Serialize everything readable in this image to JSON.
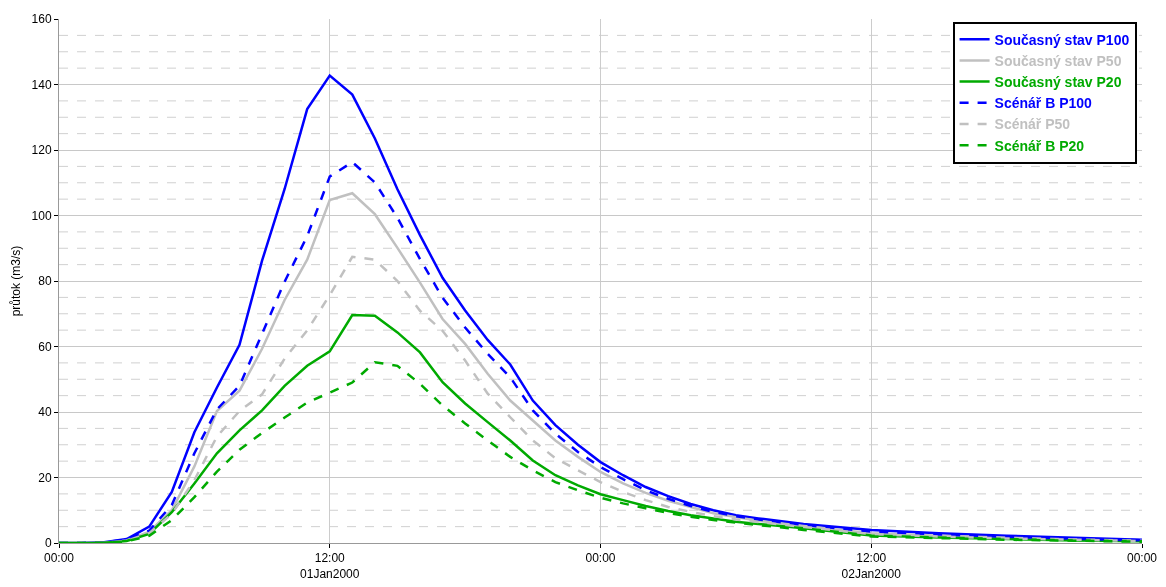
{
  "chart_data": {
    "type": "line",
    "ylabel": "průtok (m3/s)",
    "x": [
      "2000-01-01T00:00",
      "2000-01-01T01:00",
      "2000-01-01T02:00",
      "2000-01-01T03:00",
      "2000-01-01T04:00",
      "2000-01-01T05:00",
      "2000-01-01T06:00",
      "2000-01-01T07:00",
      "2000-01-01T08:00",
      "2000-01-01T09:00",
      "2000-01-01T10:00",
      "2000-01-01T11:00",
      "2000-01-01T12:00",
      "2000-01-01T13:00",
      "2000-01-01T14:00",
      "2000-01-01T15:00",
      "2000-01-01T16:00",
      "2000-01-01T17:00",
      "2000-01-01T18:00",
      "2000-01-01T19:00",
      "2000-01-01T20:00",
      "2000-01-01T21:00",
      "2000-01-01T22:00",
      "2000-01-01T23:00",
      "2000-01-02T00:00",
      "2000-01-02T01:00",
      "2000-01-02T02:00",
      "2000-01-02T03:00",
      "2000-01-02T04:00",
      "2000-01-02T05:00",
      "2000-01-02T06:00",
      "2000-01-02T07:00",
      "2000-01-02T09:00",
      "2000-01-02T12:00",
      "2000-01-02T15:00",
      "2000-01-02T18:00",
      "2000-01-02T21:00",
      "2000-01-03T00:00"
    ],
    "xlim": [
      "2000-01-01T00:00",
      "2000-01-03T00:00"
    ],
    "xticks": [
      {
        "value": "2000-01-01T00:00",
        "label": "00:00"
      },
      {
        "value": "2000-01-01T12:00",
        "label": "12:00\n01Jan2000"
      },
      {
        "value": "2000-01-02T00:00",
        "label": "00:00"
      },
      {
        "value": "2000-01-02T12:00",
        "label": "12:00\n02Jan2000"
      },
      {
        "value": "2000-01-03T00:00",
        "label": "00:00"
      }
    ],
    "ylim": [
      0,
      160
    ],
    "yticks": [
      0,
      {
        "value": 5,
        "label": null
      },
      {
        "value": 10,
        "label": null
      },
      {
        "value": 15,
        "label": null
      },
      20,
      {
        "value": 25,
        "label": null
      },
      {
        "value": 30,
        "label": null
      },
      {
        "value": 35,
        "label": null
      },
      40,
      {
        "value": 45,
        "label": null
      },
      {
        "value": 50,
        "label": null
      },
      {
        "value": 55,
        "label": null
      },
      60,
      {
        "value": 65,
        "label": null
      },
      {
        "value": 70,
        "label": null
      },
      {
        "value": 75,
        "label": null
      },
      80,
      {
        "value": 85,
        "label": null
      },
      {
        "value": 90,
        "label": null
      },
      {
        "value": 95,
        "label": null
      },
      100,
      {
        "value": 105,
        "label": null
      },
      {
        "value": 110,
        "label": null
      },
      {
        "value": 115,
        "label": null
      },
      120,
      {
        "value": 125,
        "label": null
      },
      {
        "value": 130,
        "label": null
      },
      {
        "value": 135,
        "label": null
      },
      140,
      {
        "value": 145,
        "label": null
      },
      {
        "value": 150,
        "label": null
      },
      {
        "value": 155,
        "label": null
      },
      160
    ],
    "grid": true,
    "legend": "top right",
    "marker": "none",
    "series": [
      {
        "name": "Současný stav P100",
        "color": "#0000ff",
        "line_style": "solid",
        "values": [
          0,
          0,
          0.2,
          1.2,
          5.0,
          15.6,
          33.8,
          47.5,
          60.5,
          86.2,
          108.1,
          132.5,
          142.7,
          136.9,
          123.5,
          108,
          94,
          81,
          71,
          62,
          54.5,
          43.5,
          36,
          30,
          24.7,
          20.7,
          17.1,
          14.3,
          11.9,
          10.0,
          8.5,
          7.5,
          5.8,
          4.0,
          3.0,
          2.2,
          1.6,
          1.0
        ]
      },
      {
        "name": "Současný stav P50",
        "color": "#c0c0c0",
        "line_style": "solid",
        "values": [
          0,
          0,
          0.1,
          0.8,
          3.5,
          10,
          23.4,
          40.3,
          46.5,
          59.3,
          74.2,
          86.5,
          104.7,
          106.8,
          100.4,
          90.1,
          79.5,
          68.4,
          60.8,
          51.7,
          43.5,
          37.4,
          31.3,
          26.3,
          21.7,
          18.2,
          15.3,
          12.9,
          11.0,
          9.1,
          7.9,
          6.8,
          5.2,
          3.0,
          2.2,
          1.6,
          1.1,
          0.7
        ]
      },
      {
        "name": "Současný stav P20",
        "color": "#00aa00",
        "line_style": "solid",
        "values": [
          0,
          0,
          0.1,
          0.6,
          2.8,
          9.4,
          18.2,
          27.4,
          34.4,
          40.5,
          48.0,
          54.1,
          58.5,
          69.6,
          69.4,
          64.3,
          58.2,
          49.1,
          42.6,
          36.9,
          31.3,
          25.2,
          20.7,
          17.6,
          14.9,
          13.1,
          11.3,
          9.8,
          8.5,
          7.5,
          6.5,
          5.8,
          4.5,
          2.3,
          1.7,
          1.2,
          0.8,
          0.5
        ]
      },
      {
        "name": "Scénář B P100",
        "color": "#0000ff",
        "line_style": "dashed",
        "values": [
          0,
          0,
          0.2,
          1.0,
          3.8,
          11.6,
          27.4,
          40.8,
          48.0,
          63.9,
          79.8,
          93.7,
          111.9,
          116.3,
          110.1,
          99.3,
          86.7,
          74.9,
          65.8,
          57.8,
          50.6,
          40.5,
          33.4,
          27.8,
          23.2,
          19.5,
          16.1,
          13.5,
          11.3,
          9.5,
          8.2,
          7.2,
          5.5,
          3.5,
          2.6,
          1.9,
          1.3,
          0.8
        ]
      },
      {
        "name": "Scénář P50",
        "color": "#c0c0c0",
        "line_style": "dashed",
        "values": [
          0,
          0,
          0.1,
          0.7,
          3.0,
          8.9,
          19.2,
          32.5,
          40.3,
          45.4,
          56.3,
          64.9,
          75.7,
          87.4,
          86.5,
          80.0,
          70.9,
          64.8,
          55.7,
          45.6,
          38.4,
          31.3,
          25.9,
          22.2,
          18.6,
          15.6,
          13.1,
          11.0,
          9.5,
          8.2,
          7.2,
          6.4,
          4.9,
          2.7,
          2.0,
          1.4,
          1.0,
          0.6
        ]
      },
      {
        "name": "Scénář B P20",
        "color": "#00aa00",
        "line_style": "dashed",
        "values": [
          0,
          0,
          0.1,
          0.5,
          2.2,
          7.0,
          14.0,
          21.8,
          28.5,
          33.6,
          38.3,
          42.9,
          45.9,
          49.0,
          55.2,
          54.1,
          48.6,
          42.0,
          36.5,
          31.3,
          26.3,
          22.2,
          18.6,
          16.1,
          13.8,
          12.1,
          10.6,
          9.2,
          8.0,
          7.0,
          6.2,
          5.5,
          4.0,
          2.0,
          1.5,
          1.0,
          0.7,
          0.4
        ]
      }
    ]
  }
}
